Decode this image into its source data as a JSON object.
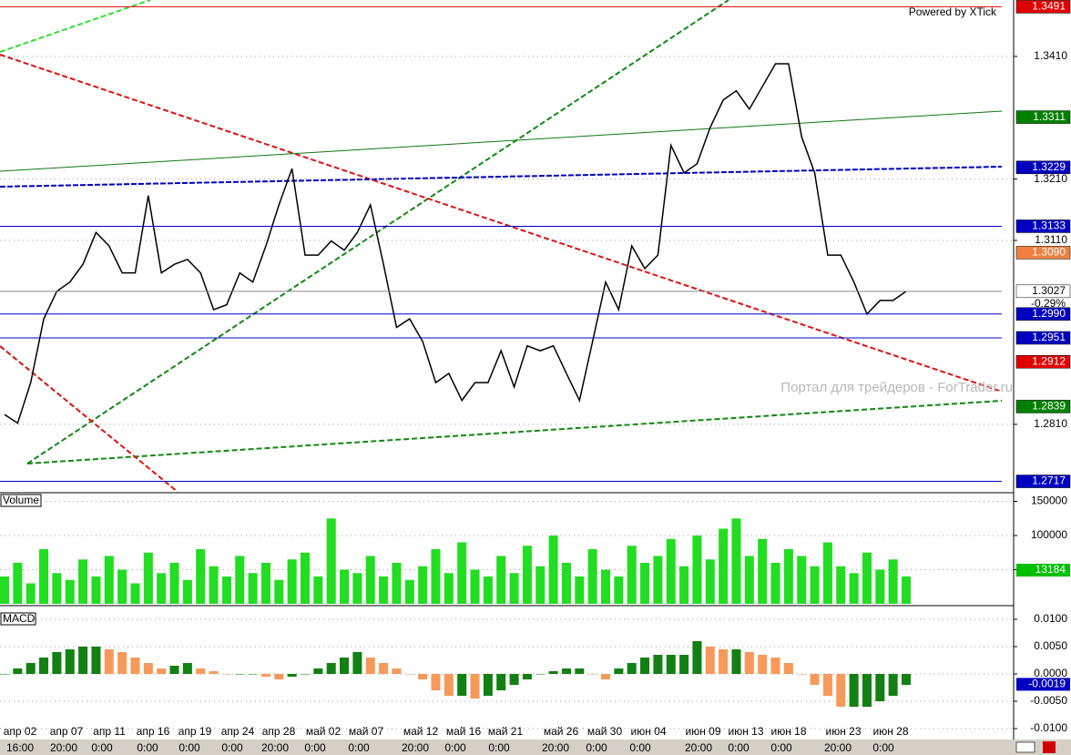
{
  "header": {
    "powered": "Powered by XTick",
    "watermark": "Портал для трейдеров - ForTrader.ru"
  },
  "x_axis": {
    "dates": [
      "апр 02",
      "апр 07",
      "апр 11",
      "апр 16",
      "апр 19",
      "апр 24",
      "апр 28",
      "май 02",
      "май 07",
      "май 12",
      "май 16",
      "май 21",
      "май 26",
      "май 30",
      "июн 04",
      "июн 09",
      "июн 13",
      "июн 18",
      "июн 23",
      "июн 28"
    ],
    "times": [
      "16:00",
      "20:00",
      "0:00",
      "0:00",
      "0:00",
      "0:00",
      "20:00",
      "0:00",
      "0:00",
      "20:00",
      "0:00",
      "0:00",
      "20:00",
      "0:00",
      "0:00",
      "20:00",
      "0:00",
      "0:00",
      "20:00",
      "0:00"
    ]
  },
  "chart_data": [
    {
      "type": "line",
      "color": "#000000",
      "ylim": [
        1.27,
        1.3502
      ],
      "yticks": [
        {
          "value": 1.341,
          "label": "1.3410"
        },
        {
          "value": 1.321,
          "label": "1.3210"
        },
        {
          "value": 1.311,
          "label": "1.3110"
        },
        {
          "value": 1.281,
          "label": "1.2810"
        }
      ],
      "grid": true,
      "values": [
        1.2826,
        1.2812,
        1.2878,
        1.2982,
        1.3027,
        1.3042,
        1.3071,
        1.3123,
        1.3101,
        1.3057,
        1.3057,
        1.3183,
        1.3057,
        1.3071,
        1.3079,
        1.3057,
        1.2997,
        1.3005,
        1.3057,
        1.3042,
        1.3101,
        1.3168,
        1.3227,
        1.3086,
        1.3086,
        1.3109,
        1.3094,
        1.3123,
        1.3168,
        1.3071,
        1.2968,
        1.2982,
        1.2945,
        1.2878,
        1.2893,
        1.2849,
        1.2878,
        1.2878,
        1.293,
        1.2871,
        1.2938,
        1.293,
        1.2938,
        1.2893,
        1.2849,
        1.2945,
        1.3042,
        1.2997,
        1.3101,
        1.3064,
        1.3086,
        1.3265,
        1.322,
        1.3235,
        1.3294,
        1.3339,
        1.3354,
        1.3324,
        1.3361,
        1.3398,
        1.3398,
        1.3279,
        1.322,
        1.3086,
        1.3086,
        1.3042,
        1.299,
        1.3012,
        1.3012,
        1.3027
      ],
      "levels": [
        {
          "value": 1.3491,
          "label": "1.3491",
          "color": "#e00000",
          "text_color": "#ffffff",
          "line": "solid"
        },
        {
          "value": 1.3311,
          "label": "1.3311",
          "color": "#008000",
          "text_color": "#ffffff",
          "line": "none"
        },
        {
          "value": 1.3229,
          "label": "1.3229",
          "color": "#0000c0",
          "text_color": "#ffffff",
          "line": "none"
        },
        {
          "value": 1.3133,
          "label": "1.3133",
          "color": "#0000c0",
          "text_color": "#ffffff",
          "line": "solid"
        },
        {
          "value": 1.309,
          "label": "1.3090",
          "color": "#f08040",
          "text_color": "#ffffff",
          "line": "none"
        },
        {
          "value": 1.3027,
          "label": "1.3027",
          "color": "#ffffff",
          "text_color": "#000000",
          "line": "solid"
        },
        {
          "value": 1.299,
          "label": "1.2990",
          "color": "#0000c0",
          "text_color": "#ffffff",
          "line": "solid"
        },
        {
          "value": 1.2951,
          "label": "1.2951",
          "color": "#0000c0",
          "text_color": "#ffffff",
          "line": "solid"
        },
        {
          "value": 1.2912,
          "label": "1.2912",
          "color": "#e00000",
          "text_color": "#ffffff",
          "line": "none"
        },
        {
          "value": 1.2839,
          "label": "1.2839",
          "color": "#008000",
          "text_color": "#ffffff",
          "line": "none"
        },
        {
          "value": 1.2717,
          "label": "1.2717",
          "color": "#0000c0",
          "text_color": "#ffffff",
          "line": "solid"
        }
      ],
      "change": "-0.29%"
    },
    {
      "type": "bar",
      "title": "Volume",
      "color": "#22dd22",
      "ylim": [
        0,
        160000
      ],
      "yticks": [
        50000,
        100000,
        150000
      ],
      "grid": true,
      "values": [
        40000,
        60000,
        30000,
        80000,
        45000,
        35000,
        65000,
        40000,
        70000,
        50000,
        30000,
        75000,
        45000,
        60000,
        35000,
        80000,
        55000,
        40000,
        70000,
        45000,
        60000,
        35000,
        65000,
        75000,
        40000,
        125000,
        50000,
        45000,
        70000,
        40000,
        60000,
        35000,
        55000,
        80000,
        45000,
        90000,
        50000,
        40000,
        70000,
        45000,
        85000,
        55000,
        100000,
        60000,
        40000,
        80000,
        50000,
        40000,
        85000,
        60000,
        70000,
        95000,
        55000,
        100000,
        65000,
        110000,
        125000,
        70000,
        95000,
        60000,
        80000,
        70000,
        55000,
        90000,
        55000,
        45000,
        75000,
        50000,
        65000,
        40000
      ],
      "badge": {
        "value": 13184,
        "label": "13184",
        "color": "#00c000"
      }
    },
    {
      "type": "bar",
      "title": "MACD",
      "up_color": "#128012",
      "down_color": "#f59a5a",
      "ylim": [
        -0.012,
        0.012
      ],
      "yticks": [
        {
          "value": 0.01,
          "label": "0.0100"
        },
        {
          "value": 0.005,
          "label": "0.0050"
        },
        {
          "value": 0,
          "label": "0.0000"
        },
        {
          "value": -0.005,
          "label": "-0.0050"
        },
        {
          "value": -0.01,
          "label": "-0.0100"
        }
      ],
      "grid": true,
      "values": [
        0,
        0.001,
        0.002,
        0.003,
        0.004,
        0.0045,
        0.005,
        0.005,
        0.0045,
        0.004,
        0.003,
        0.002,
        0.001,
        0.0015,
        0.002,
        0.001,
        0.0005,
        0,
        0,
        0,
        -0.0005,
        -0.001,
        -0.0005,
        0,
        0.001,
        0.002,
        0.003,
        0.004,
        0.003,
        0.002,
        0.001,
        0,
        -0.001,
        -0.003,
        -0.004,
        -0.004,
        -0.0045,
        -0.004,
        -0.003,
        -0.002,
        -0.001,
        0,
        0.0005,
        0.001,
        0.001,
        0,
        -0.001,
        0.001,
        0.002,
        0.003,
        0.0035,
        0.0035,
        0.0035,
        0.006,
        0.005,
        0.0045,
        0.0045,
        0.004,
        0.0035,
        0.003,
        0.002,
        0,
        -0.002,
        -0.004,
        -0.006,
        -0.006,
        -0.006,
        -0.005,
        -0.004,
        -0.002
      ],
      "badge": {
        "value": -0.0019,
        "label": "-0.0019",
        "color": "#0000c0"
      }
    }
  ]
}
